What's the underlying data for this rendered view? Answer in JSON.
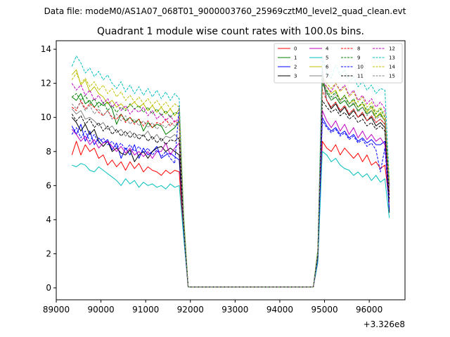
{
  "figure": {
    "suptitle": "Data file: modeM0/AS1A07_068T01_9000003760_25969cztM0_level2_quad_clean.evt"
  },
  "chart_data": {
    "type": "line",
    "title": "Quadrant 1 module wise count rates with 100.0s bins.",
    "xlabel": "",
    "ylabel": "",
    "x_offset_label": "+3.326e8",
    "xlim": [
      89000,
      96800
    ],
    "ylim": [
      -0.7,
      14.5
    ],
    "xticks": [
      89000,
      90000,
      91000,
      92000,
      93000,
      94000,
      95000,
      96000
    ],
    "yticks": [
      0,
      2,
      4,
      6,
      8,
      10,
      12,
      14
    ],
    "grid": false,
    "legend_position": "top-right",
    "x": [
      89350,
      89450,
      89550,
      89650,
      89750,
      89850,
      89950,
      90050,
      90150,
      90250,
      90350,
      90450,
      90550,
      90650,
      90750,
      90850,
      90950,
      91050,
      91150,
      91250,
      91350,
      91450,
      91550,
      91650,
      91750,
      91850,
      91950,
      92050,
      94750,
      94850,
      94950,
      95050,
      95150,
      95250,
      95350,
      95450,
      95550,
      95650,
      95750,
      95850,
      95950,
      96050,
      96150,
      96250,
      96350,
      96450
    ],
    "series": [
      {
        "name": "0",
        "color": "#ff0000",
        "dash": false,
        "values": [
          7.8,
          8.6,
          7.8,
          8.4,
          8.0,
          8.2,
          7.6,
          7.8,
          7.2,
          7.5,
          7.1,
          7.4,
          6.9,
          7.4,
          7.0,
          7.3,
          6.8,
          7.1,
          6.9,
          6.8,
          6.6,
          6.9,
          6.7,
          6.9,
          6.8,
          3.0,
          0.05,
          0.05,
          0.05,
          1.5,
          8.6,
          8.2,
          8.0,
          8.4,
          7.8,
          8.2,
          7.9,
          7.6,
          7.9,
          7.4,
          7.8,
          7.2,
          7.4,
          7.0,
          7.2,
          5.0
        ]
      },
      {
        "name": "1",
        "color": "#008000",
        "dash": false,
        "values": [
          11.2,
          11.0,
          11.4,
          10.8,
          11.0,
          10.6,
          10.9,
          10.7,
          10.9,
          10.5,
          9.6,
          10.2,
          9.8,
          10.0,
          9.7,
          9.9,
          9.2,
          9.7,
          9.4,
          9.6,
          9.5,
          9.0,
          9.2,
          9.4,
          9.8,
          4.0,
          0.05,
          0.05,
          0.05,
          2.0,
          12.0,
          11.5,
          11.0,
          11.2,
          10.8,
          11.0,
          10.6,
          10.8,
          10.4,
          10.6,
          10.2,
          10.4,
          10.0,
          10.2,
          9.8,
          6.0
        ]
      },
      {
        "name": "2",
        "color": "#0000ff",
        "dash": false,
        "values": [
          9.5,
          9.0,
          9.6,
          8.6,
          9.2,
          8.4,
          8.8,
          8.5,
          8.7,
          8.1,
          8.5,
          7.6,
          8.2,
          7.8,
          8.4,
          7.6,
          8.2,
          7.8,
          8.0,
          8.3,
          7.6,
          7.8,
          7.9,
          7.7,
          7.5,
          3.5,
          0.05,
          0.05,
          0.05,
          1.8,
          10.0,
          9.5,
          9.2,
          9.4,
          9.0,
          9.2,
          8.8,
          9.0,
          8.6,
          8.8,
          8.5,
          8.7,
          8.4,
          8.4,
          8.6,
          4.5
        ]
      },
      {
        "name": "3",
        "color": "#000000",
        "dash": false,
        "values": [
          10.0,
          9.7,
          9.2,
          9.6,
          9.0,
          9.3,
          8.6,
          8.3,
          8.6,
          8.0,
          8.2,
          7.9,
          7.8,
          8.1,
          7.4,
          7.8,
          8.0,
          7.6,
          8.0,
          8.2,
          8.3,
          8.0,
          8.2,
          8.0,
          7.8,
          3.4,
          0.05,
          0.05,
          0.05,
          2.0,
          12.5,
          11.0,
          10.5,
          10.8,
          10.3,
          10.6,
          10.1,
          10.4,
          10.0,
          10.2,
          9.8,
          10.0,
          9.5,
          9.7,
          9.4,
          4.4
        ]
      },
      {
        "name": "4",
        "color": "#bf00bf",
        "dash": false,
        "values": [
          9.3,
          9.0,
          8.6,
          8.9,
          8.4,
          8.7,
          8.2,
          8.5,
          8.6,
          8.3,
          8.0,
          8.3,
          7.9,
          8.2,
          7.8,
          8.0,
          7.7,
          8.0,
          7.6,
          8.0,
          8.0,
          8.5,
          7.8,
          8.2,
          8.5,
          3.4,
          0.05,
          0.05,
          0.05,
          1.8,
          10.4,
          9.8,
          9.4,
          9.8,
          9.2,
          9.6,
          9.0,
          9.4,
          8.8,
          9.2,
          8.7,
          9.0,
          8.6,
          8.8,
          8.4,
          5.4
        ]
      },
      {
        "name": "5",
        "color": "#00bfbf",
        "dash": false,
        "values": [
          7.2,
          7.1,
          7.3,
          7.2,
          6.9,
          6.8,
          7.1,
          6.9,
          6.7,
          6.5,
          6.3,
          6.0,
          6.4,
          6.1,
          6.3,
          5.9,
          6.2,
          6.0,
          6.1,
          5.9,
          6.0,
          5.8,
          6.1,
          5.9,
          6.0,
          3.0,
          0.05,
          0.05,
          0.05,
          1.5,
          8.0,
          7.8,
          7.4,
          7.6,
          7.2,
          7.0,
          6.9,
          6.6,
          6.8,
          6.5,
          6.7,
          6.3,
          6.6,
          6.2,
          6.4,
          4.1
        ]
      },
      {
        "name": "6",
        "color": "#bfbf00",
        "dash": false,
        "values": [
          12.5,
          12.8,
          11.9,
          12.2,
          11.5,
          11.8,
          11.4,
          11.2,
          10.8,
          11.0,
          10.6,
          10.8,
          10.5,
          10.7,
          10.9,
          10.6,
          10.8,
          10.4,
          10.7,
          10.3,
          10.6,
          10.2,
          10.5,
          10.1,
          10.5,
          4.2,
          0.05,
          0.05,
          0.05,
          2.2,
          12.0,
          11.8,
          11.4,
          11.6,
          11.0,
          11.3,
          10.8,
          11.0,
          10.6,
          10.8,
          10.3,
          10.6,
          10.0,
          10.3,
          9.8,
          5.8
        ]
      },
      {
        "name": "7",
        "color": "#808080",
        "dash": false,
        "values": [
          10.5,
          10.2,
          10.4,
          9.9,
          10.0,
          9.8,
          9.5,
          9.7,
          9.3,
          9.5,
          9.1,
          9.3,
          8.9,
          9.2,
          8.8,
          9.0,
          8.9,
          9.2,
          8.7,
          9.0,
          8.6,
          8.9,
          8.8,
          9.0,
          8.7,
          3.6,
          0.05,
          0.05,
          0.05,
          2.0,
          12.9,
          11.0,
          10.6,
          10.9,
          10.4,
          10.7,
          10.2,
          10.5,
          10.0,
          10.3,
          9.8,
          10.1,
          9.7,
          9.9,
          9.6,
          5.6
        ]
      },
      {
        "name": "8",
        "color": "#ff0000",
        "dash": true,
        "values": [
          10.6,
          10.4,
          11.0,
          10.5,
          10.8,
          10.6,
          10.3,
          10.1,
          10.4,
          10.0,
          9.9,
          10.2,
          9.7,
          10.0,
          9.6,
          9.9,
          9.5,
          9.8,
          9.4,
          9.7,
          9.6,
          9.9,
          9.5,
          9.8,
          9.6,
          3.8,
          0.05,
          0.05,
          0.05,
          2.0,
          11.6,
          11.0,
          10.6,
          10.9,
          10.4,
          10.7,
          10.2,
          10.5,
          10.0,
          10.3,
          9.8,
          10.1,
          9.7,
          9.9,
          9.6,
          5.6
        ]
      },
      {
        "name": "9",
        "color": "#008000",
        "dash": true,
        "values": [
          11.2,
          11.4,
          11.0,
          11.3,
          10.8,
          11.1,
          10.6,
          10.9,
          10.4,
          10.7,
          10.3,
          10.6,
          10.4,
          10.8,
          10.5,
          10.7,
          10.3,
          10.6,
          10.2,
          10.5,
          10.1,
          10.4,
          10.0,
          10.3,
          10.2,
          4.0,
          0.05,
          0.05,
          0.05,
          2.1,
          12.1,
          11.6,
          11.2,
          11.5,
          11.0,
          11.3,
          10.8,
          11.1,
          10.6,
          10.9,
          10.4,
          10.7,
          10.2,
          10.5,
          10.0,
          6.0
        ]
      },
      {
        "name": "10",
        "color": "#0000ff",
        "dash": true,
        "values": [
          9.0,
          9.4,
          8.8,
          9.2,
          8.6,
          9.0,
          8.5,
          8.8,
          8.4,
          8.6,
          8.2,
          8.5,
          8.1,
          8.4,
          8.0,
          8.3,
          7.9,
          8.2,
          7.8,
          8.1,
          7.7,
          8.0,
          7.6,
          7.3,
          10.7,
          3.5,
          0.05,
          0.05,
          0.05,
          1.8,
          9.8,
          9.4,
          9.1,
          9.3,
          8.9,
          9.1,
          8.7,
          8.9,
          8.5,
          8.7,
          8.3,
          8.5,
          8.1,
          6.8,
          8.2,
          4.6
        ]
      },
      {
        "name": "11",
        "color": "#000000",
        "dash": true,
        "values": [
          10.2,
          9.8,
          10.1,
          9.6,
          9.9,
          9.4,
          9.7,
          9.2,
          9.5,
          9.0,
          9.3,
          8.9,
          9.2,
          8.8,
          9.1,
          8.7,
          9.0,
          8.6,
          8.9,
          8.5,
          8.8,
          8.4,
          8.7,
          8.6,
          8.8,
          3.6,
          0.05,
          0.05,
          0.05,
          1.9,
          11.0,
          10.6,
          10.3,
          10.5,
          10.1,
          10.3,
          9.9,
          10.1,
          9.7,
          9.9,
          9.5,
          9.7,
          9.3,
          9.5,
          9.2,
          5.2
        ]
      },
      {
        "name": "12",
        "color": "#bf00bf",
        "dash": true,
        "values": [
          12.0,
          11.6,
          11.9,
          11.3,
          11.6,
          11.0,
          11.3,
          10.8,
          11.1,
          10.6,
          10.9,
          10.4,
          10.7,
          10.2,
          10.5,
          10.3,
          10.6,
          10.1,
          10.4,
          9.9,
          10.2,
          9.8,
          10.1,
          9.7,
          10.0,
          3.9,
          0.05,
          0.05,
          0.05,
          2.1,
          12.2,
          11.8,
          11.5,
          12.0,
          11.6,
          11.9,
          11.3,
          11.6,
          11.0,
          11.3,
          10.8,
          11.1,
          10.6,
          10.9,
          10.5,
          6.0
        ]
      },
      {
        "name": "13",
        "color": "#00bfbf",
        "dash": true,
        "values": [
          13.0,
          13.6,
          13.2,
          12.6,
          12.9,
          12.4,
          12.7,
          12.2,
          12.5,
          12.0,
          11.7,
          12.1,
          11.5,
          11.9,
          11.4,
          11.8,
          11.3,
          11.7,
          11.2,
          11.6,
          11.1,
          11.5,
          11.0,
          11.4,
          11.1,
          4.4,
          0.05,
          0.05,
          0.05,
          2.3,
          13.6,
          12.6,
          12.3,
          13.1,
          12.5,
          12.8,
          12.1,
          12.4,
          11.8,
          12.1,
          11.6,
          11.9,
          11.4,
          11.7,
          11.6,
          6.3
        ]
      },
      {
        "name": "14",
        "color": "#bfbf00",
        "dash": true,
        "values": [
          12.2,
          12.6,
          12.0,
          12.3,
          11.8,
          12.1,
          11.6,
          11.9,
          11.4,
          11.7,
          11.2,
          11.5,
          11.0,
          11.3,
          10.9,
          11.2,
          10.8,
          11.1,
          10.7,
          11.0,
          10.6,
          10.9,
          10.5,
          10.8,
          10.6,
          4.2,
          0.05,
          0.05,
          0.05,
          2.2,
          12.4,
          12.0,
          11.7,
          12.0,
          11.5,
          11.8,
          11.2,
          11.5,
          10.9,
          11.2,
          10.6,
          10.9,
          10.3,
          10.6,
          10.2,
          6.2
        ]
      },
      {
        "name": "15",
        "color": "#808080",
        "dash": true,
        "values": [
          10.8,
          10.5,
          10.9,
          10.4,
          10.7,
          10.2,
          10.5,
          10.1,
          10.4,
          9.9,
          10.2,
          9.8,
          10.1,
          9.6,
          9.9,
          9.5,
          9.8,
          9.4,
          9.7,
          9.3,
          9.6,
          9.4,
          9.7,
          9.5,
          9.8,
          3.8,
          0.05,
          0.05,
          0.05,
          2.0,
          12.3,
          11.4,
          11.0,
          11.4,
          10.9,
          11.2,
          10.6,
          10.9,
          10.3,
          10.6,
          10.1,
          10.4,
          9.9,
          10.1,
          9.8,
          5.7
        ]
      }
    ]
  }
}
